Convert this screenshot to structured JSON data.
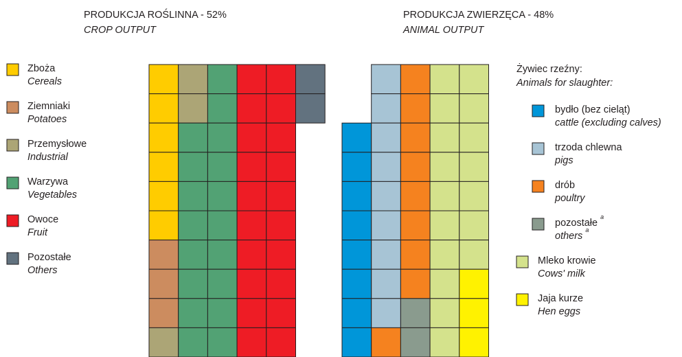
{
  "chart_data": [
    {
      "type": "waffle",
      "title": "PRODUKCJA ROŚLINNA - 52%",
      "subtitle": "CROP OUTPUT",
      "series": [
        {
          "name": "Zboża",
          "name_en": "Cereals",
          "color": "#ffcc00",
          "value": 6
        },
        {
          "name": "Ziemniaki",
          "name_en": "Potatoes",
          "color": "#cc8c5f",
          "value": 3
        },
        {
          "name": "Przemysłowe",
          "name_en": "Industrial",
          "color": "#aca576",
          "value": 3
        },
        {
          "name": "Warzywa",
          "name_en": "Vegetables",
          "color": "#52a274",
          "value": 18
        },
        {
          "name": "Owoce",
          "name_en": "Fruit",
          "color": "#ee1c25",
          "value": 20
        },
        {
          "name": "Pozostałe",
          "name_en": "Others",
          "color": "#62727f",
          "value": 2
        }
      ]
    },
    {
      "type": "waffle",
      "title": "PRODUKCJA ZWIERZĘCA - 48%",
      "subtitle": "ANIMAL OUTPUT",
      "group": "Żywiec rzeźny:",
      "group_en": "Animals for slaughter:",
      "series": [
        {
          "name": "bydło (bez cieląt)",
          "name_en": "cattle (excluding calves)",
          "color": "#0096d9",
          "value": 8
        },
        {
          "name": "trzoda chlewna",
          "name_en": "pigs",
          "color": "#a7c4d5",
          "value": 9
        },
        {
          "name": "drób",
          "name_en": "poultry",
          "color": "#f5821f",
          "value": 9
        },
        {
          "name": "pozostałe",
          "name_en": "others",
          "note": "a",
          "color": "#8a9b8e",
          "value": 2
        },
        {
          "name": "Mleko krowie",
          "name_en": "Cows' milk",
          "color": "#d4e28c",
          "value": 17
        },
        {
          "name": "Jaja kurze",
          "name_en": "Hen eggs",
          "color": "#fff200",
          "value": 3
        }
      ]
    }
  ]
}
